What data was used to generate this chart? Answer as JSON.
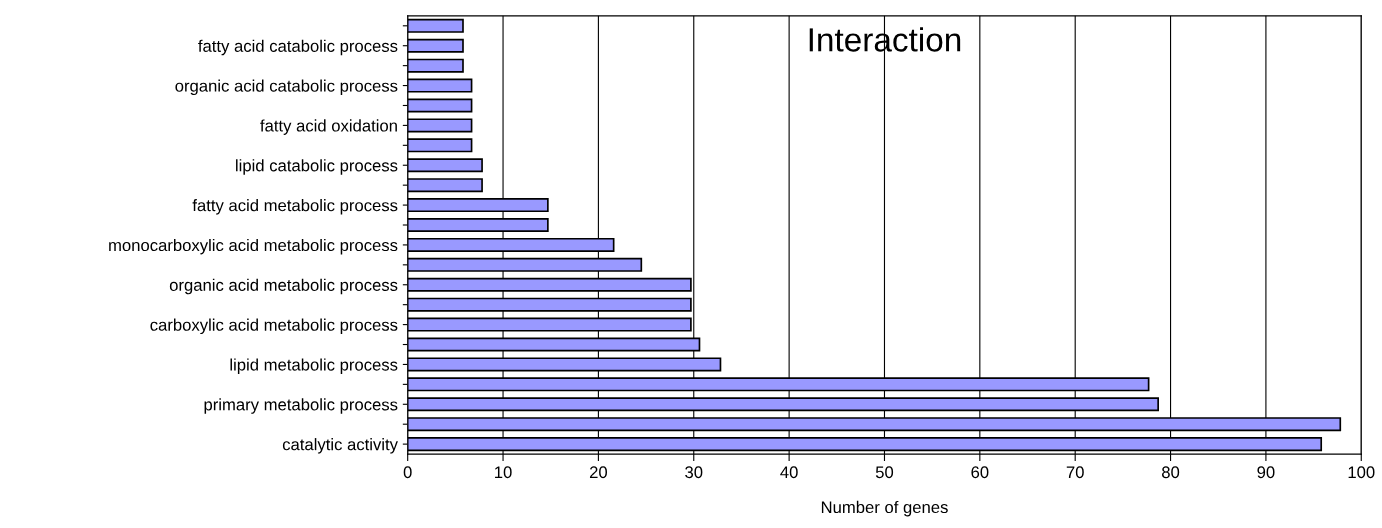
{
  "chart_data": {
    "type": "bar",
    "orientation": "horizontal",
    "title": "Interaction",
    "xlabel": "Number of genes",
    "categories": [
      null,
      "fatty acid catabolic process",
      null,
      "organic acid catabolic process",
      null,
      "fatty acid oxidation",
      null,
      "lipid catabolic process",
      null,
      "fatty acid metabolic process",
      null,
      "monocarboxylic acid metabolic process",
      null,
      "organic acid metabolic process",
      null,
      "carboxylic acid metabolic process",
      null,
      "lipid metabolic process",
      null,
      "primary metabolic process",
      null,
      "catalytic activity"
    ],
    "values": [
      5.8,
      5.8,
      5.8,
      6.7,
      6.7,
      6.7,
      6.7,
      7.8,
      7.8,
      14.7,
      14.7,
      21.6,
      24.5,
      29.7,
      29.7,
      29.7,
      30.6,
      32.8,
      77.7,
      78.7,
      97.8,
      95.8
    ],
    "color": "#9999ff",
    "xlim": [
      0,
      100
    ],
    "xticks": [
      0,
      10,
      20,
      30,
      40,
      50,
      60,
      70,
      80,
      90,
      100
    ],
    "grid": "x",
    "legend": false
  }
}
